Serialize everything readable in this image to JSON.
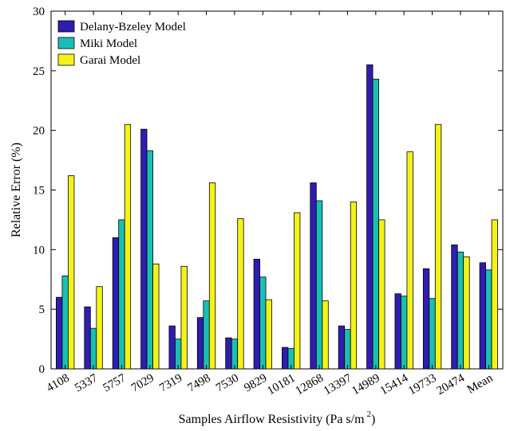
{
  "chart_data": {
    "type": "bar",
    "categories": [
      "4108",
      "5337",
      "5757",
      "7029",
      "7319",
      "7498",
      "7530",
      "9829",
      "10181",
      "12868",
      "13397",
      "14989",
      "15414",
      "19733",
      "20474",
      "Mean"
    ],
    "series": [
      {
        "name": "Delany-Bzeley Model",
        "color": "#2f1db0",
        "values": [
          6.0,
          5.2,
          11.0,
          20.1,
          3.6,
          4.3,
          2.6,
          9.2,
          1.8,
          15.6,
          3.6,
          25.5,
          6.3,
          8.4,
          10.4,
          8.9
        ]
      },
      {
        "name": "Miki Model",
        "color": "#1abfb4",
        "values": [
          7.8,
          3.4,
          12.5,
          18.3,
          2.5,
          5.7,
          2.5,
          7.7,
          1.7,
          14.1,
          3.3,
          24.3,
          6.1,
          5.9,
          9.8,
          8.3
        ]
      },
      {
        "name": "Garai Model",
        "color": "#f4f21a",
        "values": [
          16.2,
          6.9,
          20.5,
          8.8,
          8.6,
          15.6,
          12.6,
          5.8,
          13.1,
          5.7,
          14.0,
          12.5,
          18.2,
          20.5,
          9.4,
          12.5
        ]
      }
    ],
    "xlabel": "Samples Airflow Resistivity (Pa s/m",
    "xlabel_superscript": "2",
    "xlabel_suffix": ")",
    "ylabel": "Relative Error (%)",
    "ylim": [
      0,
      30
    ],
    "yticks": [
      0,
      5,
      10,
      15,
      20,
      25,
      30
    ],
    "grid": false,
    "legend_position": "top-left"
  }
}
